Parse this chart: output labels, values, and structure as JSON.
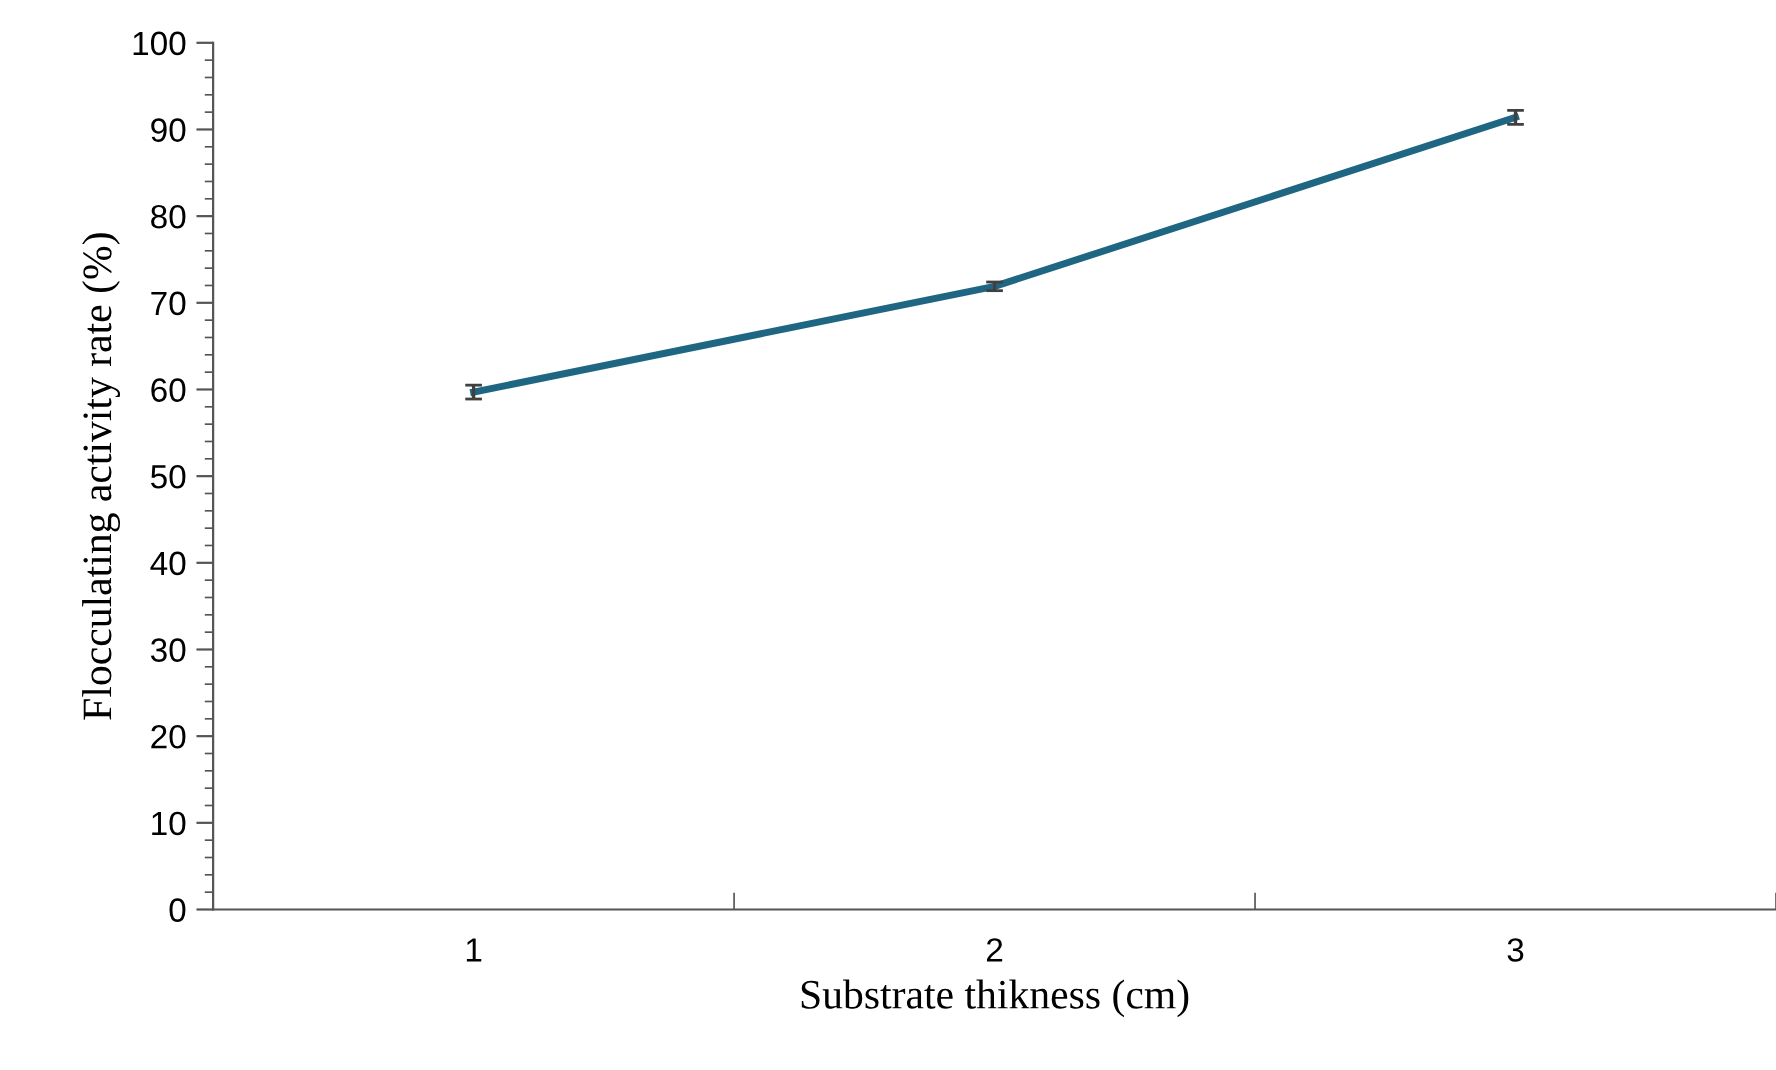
{
  "chart_data": {
    "type": "line",
    "xlabel": "Substrate thikness (cm)",
    "ylabel": "Flocculating activity rate (%)",
    "categories": [
      "1",
      "2",
      "3"
    ],
    "series": [
      {
        "color": "#1f6683",
        "values": [
          59.7,
          71.9,
          91.4
        ],
        "errors": [
          0.8,
          0.5,
          0.8
        ]
      }
    ],
    "ylim": [
      0,
      100
    ],
    "yticks": [
      0,
      10,
      20,
      30,
      40,
      50,
      60,
      70,
      80,
      90,
      100
    ],
    "grid": false,
    "legend": false,
    "marker": "none",
    "line_style": "solid"
  }
}
